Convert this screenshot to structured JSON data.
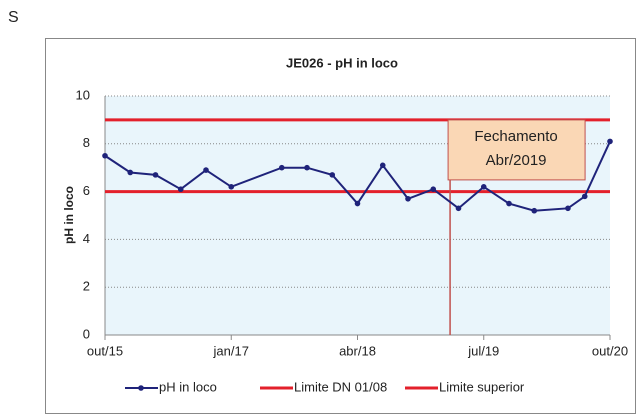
{
  "heading": "S",
  "chart_data": {
    "type": "line",
    "title": "JE026  - pH in loco",
    "ylabel": "pH in loco",
    "x": [
      "2015-10",
      "2016-01",
      "2016-04",
      "2016-07",
      "2016-10",
      "2017-01",
      "2017-07",
      "2017-10",
      "2018-01",
      "2018-04",
      "2018-07",
      "2018-10",
      "2019-01",
      "2019-04",
      "2019-07",
      "2019-10",
      "2020-01",
      "2020-05",
      "2020-07",
      "2020-10"
    ],
    "series": [
      {
        "name": "pH in loco",
        "color": "#1f237a",
        "values": [
          7.5,
          6.8,
          6.7,
          6.1,
          6.9,
          6.2,
          7.0,
          7.0,
          6.7,
          5.5,
          7.1,
          5.7,
          6.1,
          5.3,
          6.2,
          5.5,
          5.2,
          5.3,
          5.8,
          8.1
        ]
      }
    ],
    "reference_lines": [
      {
        "name": "Limite DN 01/08",
        "value": 6,
        "color": "#e3202b"
      },
      {
        "name": "Limite superior",
        "value": 9,
        "color": "#e3202b"
      }
    ],
    "annotation": {
      "x": "2019-03",
      "text": [
        "Fechamento",
        "Abr/2019"
      ],
      "color": "#c0504d"
    },
    "xlim": [
      "2015-10",
      "2020-10"
    ],
    "xticks": [
      {
        "value": "2015-10",
        "label": "out/15"
      },
      {
        "value": "2017-01",
        "label": "jan/17"
      },
      {
        "value": "2018-04",
        "label": "abr/18"
      },
      {
        "value": "2019-07",
        "label": "jul/19"
      },
      {
        "value": "2020-10",
        "label": "out/20"
      }
    ],
    "ylim": [
      0,
      10
    ],
    "yticks": [
      0,
      2,
      4,
      6,
      8,
      10
    ],
    "grid": true,
    "legend": "bottom"
  }
}
